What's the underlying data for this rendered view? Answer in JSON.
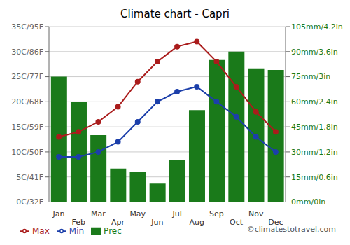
{
  "chart_data": {
    "type": "bar",
    "title": "Climate chart - Capri",
    "categories": [
      "Jan",
      "Feb",
      "Mar",
      "Apr",
      "May",
      "Jun",
      "Jul",
      "Aug",
      "Sep",
      "Oct",
      "Nov",
      "Dec"
    ],
    "series": [
      {
        "name": "Prec",
        "type": "bar",
        "axis": "y2",
        "color": "#1a7a1a",
        "values": [
          75,
          60,
          40,
          20,
          18,
          11,
          25,
          55,
          85,
          90,
          80,
          79
        ]
      },
      {
        "name": "Min",
        "type": "line",
        "axis": "y",
        "color": "#1c3faa",
        "marker": "circle",
        "values": [
          9,
          9,
          10,
          12,
          16,
          20,
          22,
          23,
          20,
          17,
          13,
          10
        ]
      },
      {
        "name": "Max",
        "type": "line",
        "axis": "y",
        "color": "#aa1c1c",
        "marker": "circle",
        "values": [
          13,
          14,
          16,
          19,
          24,
          28,
          31,
          32,
          28,
          23,
          18,
          14
        ]
      }
    ],
    "ylim": [
      0,
      35
    ],
    "yticks": [
      {
        "value": 0,
        "label": "0C/32F"
      },
      {
        "value": 5,
        "label": "5C/41F"
      },
      {
        "value": 10,
        "label": "10C/50F"
      },
      {
        "value": 15,
        "label": "15C/59F"
      },
      {
        "value": 20,
        "label": "20C/68F"
      },
      {
        "value": 25,
        "label": "25C/77F"
      },
      {
        "value": 30,
        "label": "30C/86F"
      },
      {
        "value": 35,
        "label": "35C/95F"
      }
    ],
    "y2lim": [
      0,
      105
    ],
    "y2ticks": [
      {
        "value": 0,
        "label": "0mm/0in"
      },
      {
        "value": 15,
        "label": "15mm/0.6in"
      },
      {
        "value": 30,
        "label": "30mm/1.2in"
      },
      {
        "value": 45,
        "label": "45mm/1.8in"
      },
      {
        "value": 60,
        "label": "60mm/2.4in"
      },
      {
        "value": 75,
        "label": "75mm/3in"
      },
      {
        "value": 90,
        "label": "90mm/3.6in"
      },
      {
        "value": 105,
        "label": "105mm/4.2in"
      }
    ],
    "grid": true,
    "legend": "lower left",
    "annotations": [
      "©climatestotravel.com"
    ]
  }
}
